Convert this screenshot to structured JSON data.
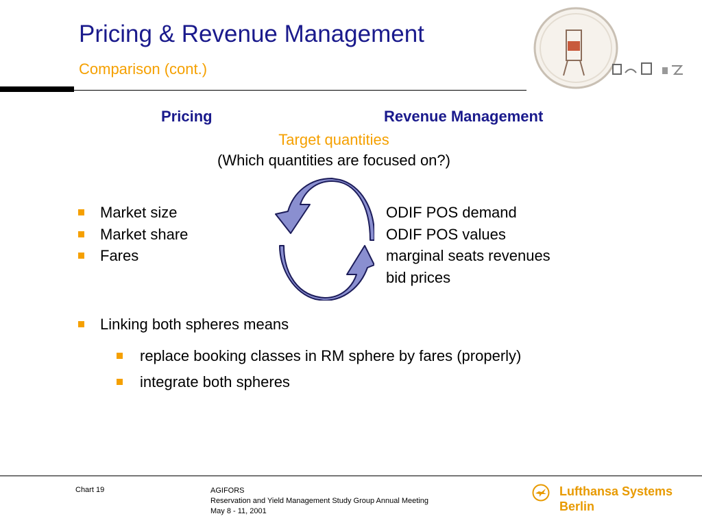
{
  "header": {
    "title": "Pricing & Revenue Management",
    "subtitle": "Comparison (cont.)"
  },
  "columns": {
    "left_heading": "Pricing",
    "right_heading": "Revenue Management"
  },
  "center": {
    "topic": "Target quantities",
    "question": "(Which quantities are focused on?)"
  },
  "pricing_items": [
    "Market size",
    "Market share",
    "Fares"
  ],
  "rm_items": [
    "ODIF POS demand",
    "ODIF POS values",
    "marginal seats revenues",
    "bid prices"
  ],
  "linking": {
    "intro": "Linking both spheres means",
    "points": [
      "replace booking classes in RM sphere by fares (properly)",
      "integrate both spheres"
    ]
  },
  "footer": {
    "chart_label": "Chart 19",
    "org": "AGIFORS",
    "event": "Reservation and Yield Management Study Group Annual Meeting",
    "date": "May 8 - 11, 2001",
    "brand_line1": "Lufthansa Systems",
    "brand_line2": "Berlin"
  },
  "colors": {
    "title": "#1a1a8c",
    "accent": "#f5a000",
    "arrow_fill": "#8a8fd0",
    "arrow_stroke": "#1c1c5a"
  },
  "icons": {
    "cycle": "cycle-arrows-icon",
    "brand": "lufthansa-crane-icon",
    "logo": "meeting-logo-icon"
  }
}
